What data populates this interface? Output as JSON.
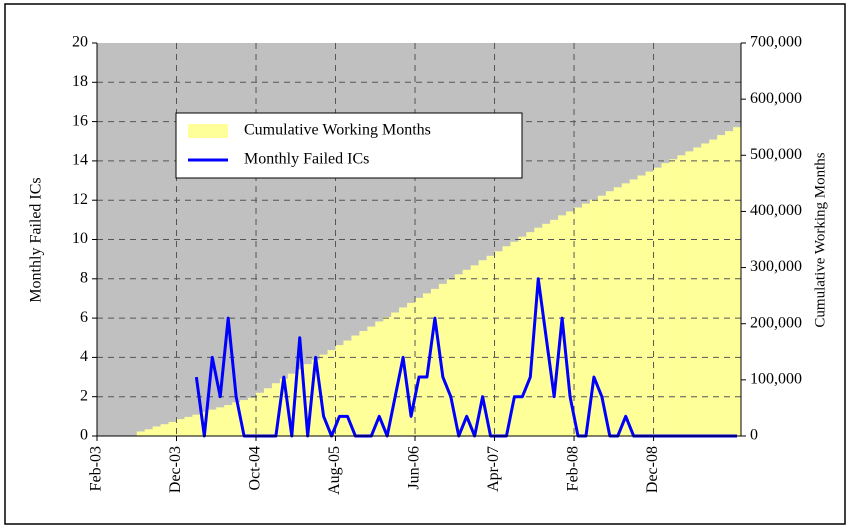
{
  "chart_data": {
    "type": "combo",
    "y_label": "Monthly Failed ICs",
    "y2_label": "Cumulative Working Months",
    "categories": [
      "Feb-03",
      null,
      null,
      null,
      null,
      null,
      null,
      null,
      null,
      null,
      "Dec-03",
      null,
      null,
      null,
      null,
      null,
      null,
      null,
      null,
      null,
      "Oct-04",
      null,
      null,
      null,
      null,
      null,
      null,
      null,
      null,
      null,
      "Aug-05",
      null,
      null,
      null,
      null,
      null,
      null,
      null,
      null,
      null,
      "Jun-06",
      null,
      null,
      null,
      null,
      null,
      null,
      null,
      null,
      null,
      "Apr-07",
      null,
      null,
      null,
      null,
      null,
      null,
      null,
      null,
      null,
      "Feb-08",
      null,
      null,
      null,
      null,
      null,
      null,
      null,
      null,
      null,
      "Dec-08",
      null,
      null,
      null,
      null,
      null,
      null,
      null,
      null,
      null,
      null
    ],
    "series": [
      {
        "name": "Cumulative Working Months",
        "type": "area",
        "axis": "y2",
        "color": "#ffff99",
        "values": [
          0,
          0,
          0,
          0,
          0,
          8000,
          12000,
          17000,
          21000,
          25000,
          30000,
          34000,
          38000,
          43000,
          47000,
          51000,
          55000,
          60000,
          64000,
          68000,
          77000,
          85000,
          94000,
          102000,
          111000,
          119000,
          128000,
          136000,
          145000,
          153000,
          162000,
          170000,
          179000,
          187000,
          195000,
          204000,
          212000,
          220000,
          229000,
          237000,
          246000,
          254000,
          262000,
          271000,
          279000,
          288000,
          296000,
          304000,
          313000,
          321000,
          329000,
          338000,
          346000,
          355000,
          363000,
          371000,
          378000,
          385000,
          393000,
          400000,
          407000,
          414000,
          421000,
          428000,
          436000,
          443000,
          450000,
          457000,
          464000,
          471000,
          478000,
          486000,
          493000,
          500000,
          507000,
          514000,
          521000,
          528000,
          536000,
          543000,
          550000
        ]
      },
      {
        "name": "Monthly Failed ICs",
        "type": "line",
        "axis": "y",
        "color": "#0000ff",
        "values": [
          null,
          null,
          null,
          null,
          null,
          null,
          null,
          null,
          null,
          null,
          null,
          null,
          3,
          0,
          4,
          2,
          6,
          2,
          0,
          0,
          0,
          0,
          0,
          3,
          0,
          5,
          0,
          4,
          1,
          0,
          1,
          1,
          0,
          0,
          0,
          1,
          0,
          2,
          4,
          1,
          3,
          3,
          6,
          3,
          2,
          0,
          1,
          0,
          2,
          0,
          0,
          0,
          2,
          2,
          3,
          8,
          5,
          2,
          6,
          2,
          0,
          0,
          3,
          2,
          0,
          0,
          1,
          0,
          0,
          0,
          0,
          0,
          0,
          0,
          0,
          0,
          0,
          0,
          0,
          0,
          0
        ]
      }
    ],
    "ylim": [
      0,
      20
    ],
    "yticks": [
      0,
      2,
      4,
      6,
      8,
      10,
      12,
      14,
      16,
      18,
      20
    ],
    "y2lim": [
      0,
      700000
    ],
    "y2ticks": [
      0,
      {
        "value": 100000,
        "label": "100,000"
      },
      {
        "value": 200000,
        "label": "200,000"
      },
      {
        "value": 300000,
        "label": "300,000"
      },
      {
        "value": 400000,
        "label": "400,000"
      },
      {
        "value": 500000,
        "label": "500,000"
      },
      {
        "value": 600000,
        "label": "600,000"
      },
      {
        "value": 700000,
        "label": "700,000"
      }
    ],
    "grid": true,
    "background": "#c0c0c0"
  }
}
